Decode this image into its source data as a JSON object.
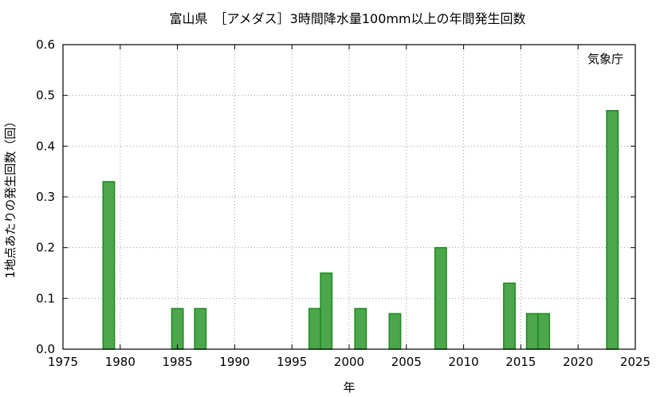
{
  "chart_data": {
    "type": "bar",
    "title": "富山県　［アメダス］3時間降水量100mm以上の年間発生回数",
    "annotation": "気象庁",
    "xlabel": "年",
    "ylabel": "1地点あたりの発生回数（回）",
    "xlim": [
      1975,
      2025
    ],
    "ylim": [
      0,
      0.6
    ],
    "xticks": [
      1975,
      1980,
      1985,
      1990,
      1995,
      2000,
      2005,
      2010,
      2015,
      2020,
      2025
    ],
    "yticks": [
      "0.0",
      "0.1",
      "0.2",
      "0.3",
      "0.4",
      "0.5",
      "0.6"
    ],
    "grid": true,
    "bar_fill": "#4ca64c",
    "bar_stroke": "#1e8a1e",
    "series": [
      {
        "x": [
          1979,
          1985,
          1987,
          1997,
          1998,
          2001,
          2004,
          2008,
          2014,
          2016,
          2017,
          2023
        ],
        "values": [
          0.33,
          0.08,
          0.08,
          0.08,
          0.15,
          0.08,
          0.07,
          0.2,
          0.13,
          0.07,
          0.07,
          0.47
        ]
      }
    ]
  }
}
